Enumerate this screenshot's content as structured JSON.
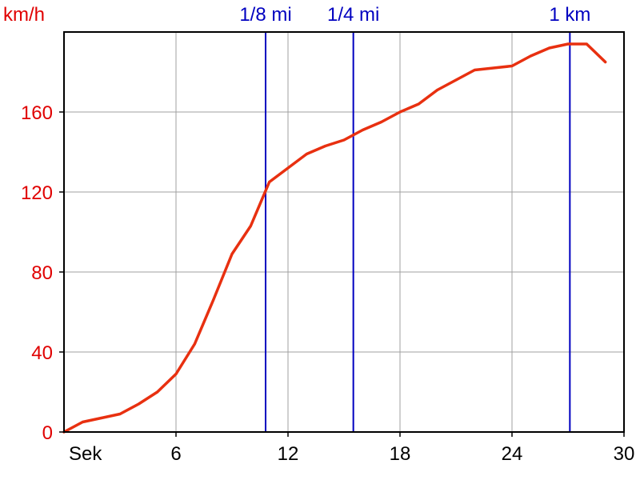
{
  "chart_data": {
    "type": "line",
    "title": "",
    "ylabel": "km/h",
    "xlabel": "Sek",
    "xlim": [
      0,
      30
    ],
    "ylim": [
      0,
      200
    ],
    "x_ticks": [
      6,
      12,
      18,
      24,
      30
    ],
    "y_ticks": [
      0,
      40,
      80,
      120,
      160
    ],
    "grid": true,
    "series": [
      {
        "color": "#e83010",
        "x": [
          0,
          1,
          2,
          3,
          4,
          5,
          6,
          7,
          8,
          9,
          10,
          11,
          12,
          13,
          14,
          15,
          16,
          17,
          18,
          19,
          20,
          21,
          22,
          23,
          24,
          25,
          26,
          27,
          28,
          29
        ],
        "y": [
          0,
          5,
          7,
          9,
          14,
          20,
          29,
          44,
          66,
          89,
          103,
          125,
          132,
          139,
          143,
          146,
          151,
          155,
          160,
          164,
          171,
          176,
          181,
          182,
          183,
          188,
          192,
          194,
          194,
          185
        ]
      }
    ],
    "markers": [
      {
        "label": "1/8 mi",
        "x": 10.8
      },
      {
        "label": "1/4 mi",
        "x": 15.5
      },
      {
        "label": "1 km",
        "x": 27.1
      }
    ],
    "colors": {
      "series": "#e83010",
      "markers": "#0000c0",
      "grid": "#a0a0a0",
      "axis": "#000000",
      "y_ticks": "#e00000"
    }
  }
}
